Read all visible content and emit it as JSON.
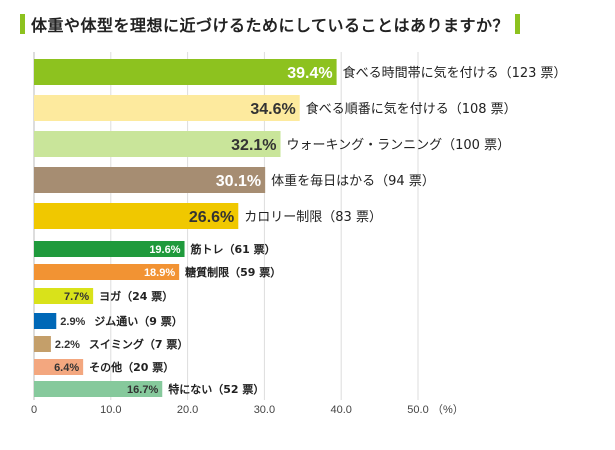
{
  "chart_data": {
    "type": "bar",
    "orientation": "horizontal",
    "title": "体重や体型を理想に近づけるためにしていることはありますか？",
    "xlabel": "(%)",
    "ylabel": "",
    "xlim": [
      0,
      50
    ],
    "xticks": [
      "0",
      "10.0",
      "20.0",
      "30.0",
      "40.0",
      "50.0"
    ],
    "xunit": "（%）",
    "grid": true,
    "categories": [
      "食べる時間帯に気を付ける",
      "食べる順番に気を付ける",
      "ウォーキング・ランニング",
      "体重を毎日はかる",
      "カロリー制限",
      "筋トレ",
      "糖質制限",
      "ヨガ",
      "ジム通い",
      "スイミング",
      "その他",
      "特にない"
    ],
    "values": [
      39.4,
      34.6,
      32.1,
      30.1,
      26.6,
      19.6,
      18.9,
      7.7,
      2.9,
      2.2,
      6.4,
      16.7
    ],
    "votes": [
      123,
      108,
      100,
      94,
      83,
      61,
      59,
      24,
      9,
      7,
      20,
      52
    ],
    "value_labels": [
      "39.4%",
      "34.6%",
      "32.1%",
      "30.1%",
      "26.6%",
      "19.6%",
      "18.9%",
      "7.7%",
      "2.9%",
      "2.2%",
      "6.4%",
      "16.7%"
    ],
    "category_labels": [
      "食べる時間帯に気を付ける（123 票）",
      "食べる順番に気を付ける（108 票）",
      "ウォーキング・ランニング（100 票）",
      "体重を毎日はかる（94 票）",
      "カロリー制限（83 票）",
      "筋トレ（61 票）",
      "糖質制限（59 票）",
      "ヨガ（24 票）",
      "ジム通い（9 票）",
      "スイミング（7 票）",
      "その他（20 票）",
      "特にない（52 票）"
    ],
    "colors": [
      "#8dc21f",
      "#fdea9e",
      "#c9e59a",
      "#a68d72",
      "#f0c800",
      "#1f9a3c",
      "#f29333",
      "#d9e21a",
      "#0068b7",
      "#c49f6a",
      "#f3a77f",
      "#86c99c"
    ],
    "value_label_colors": [
      "#ffffff",
      "#333333",
      "#333333",
      "#ffffff",
      "#333333",
      "#ffffff",
      "#ffffff",
      "#333333",
      "#333333",
      "#333333",
      "#333333",
      "#333333"
    ],
    "accent": "#8dc21f"
  }
}
